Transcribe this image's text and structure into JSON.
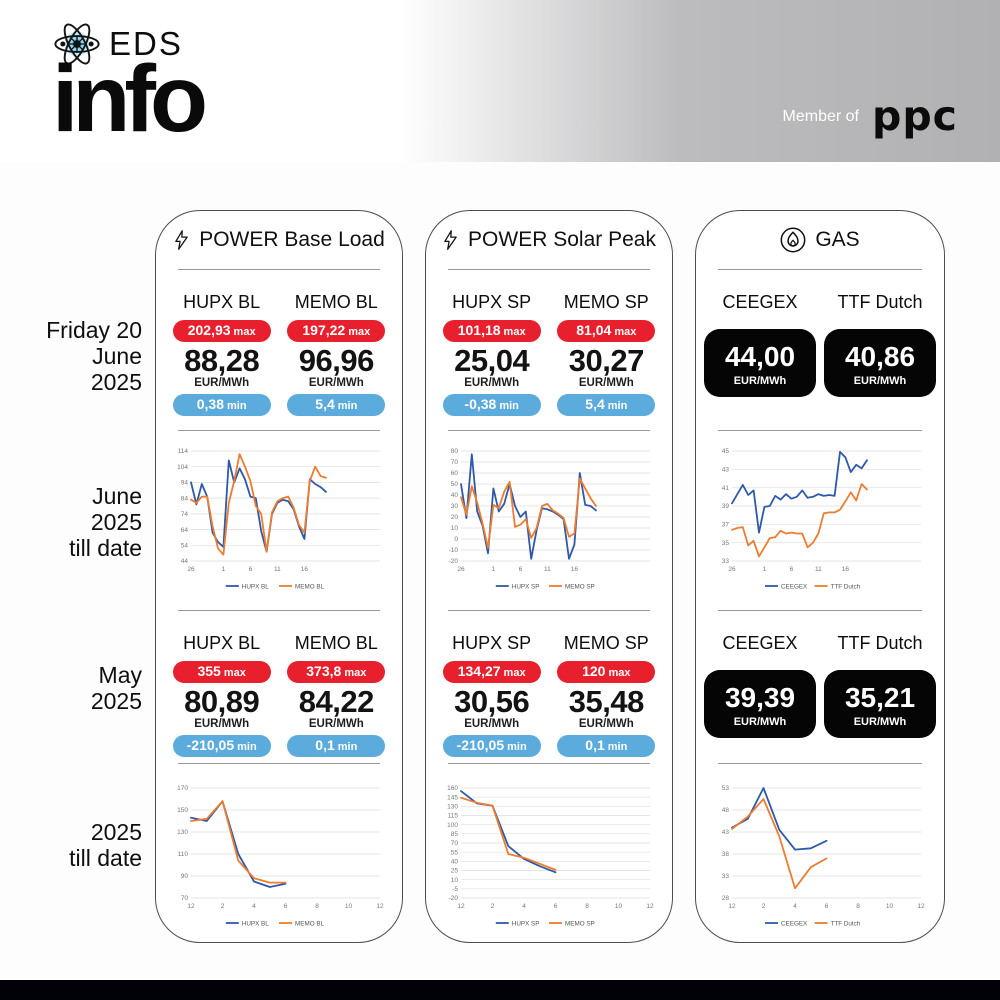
{
  "header": {
    "logo_top": "EDS",
    "logo_main": "info",
    "member_of": "Member of",
    "member_brand": "ppc"
  },
  "row_labels": {
    "day": [
      "Friday 20",
      "June",
      "2025"
    ],
    "june": [
      "June",
      "2025",
      "till date"
    ],
    "may": [
      "May",
      "2025"
    ],
    "ytd": [
      "2025",
      "till date"
    ]
  },
  "labels": {
    "max": "max",
    "min": "min"
  },
  "columns": [
    {
      "title": "POWER Base Load",
      "icon": "lightning",
      "day": [
        {
          "name": "HUPX BL",
          "max": "202,93",
          "value": "88,28",
          "unit": "EUR/MWh",
          "min": "0,38"
        },
        {
          "name": "MEMO BL",
          "max": "197,22",
          "value": "96,96",
          "unit": "EUR/MWh",
          "min": "5,4"
        }
      ],
      "may": [
        {
          "name": "HUPX BL",
          "max": "355",
          "value": "80,89",
          "unit": "EUR/MWh",
          "min": "-210,05"
        },
        {
          "name": "MEMO BL",
          "max": "373,8",
          "value": "84,22",
          "unit": "EUR/MWh",
          "min": "0,1"
        }
      ]
    },
    {
      "title": "POWER Solar Peak",
      "icon": "lightning",
      "day": [
        {
          "name": "HUPX SP",
          "max": "101,18",
          "value": "25,04",
          "unit": "EUR/MWh",
          "min": "-0,38"
        },
        {
          "name": "MEMO SP",
          "max": "81,04",
          "value": "30,27",
          "unit": "EUR/MWh",
          "min": "5,4"
        }
      ],
      "may": [
        {
          "name": "HUPX SP",
          "max": "134,27",
          "value": "30,56",
          "unit": "EUR/MWh",
          "min": "-210,05"
        },
        {
          "name": "MEMO SP",
          "max": "120",
          "value": "35,48",
          "unit": "EUR/MWh",
          "min": "0,1"
        }
      ]
    },
    {
      "title": "GAS",
      "icon": "flame",
      "day": [
        {
          "name": "CEEGEX",
          "value": "44,00",
          "unit": "EUR/MWh"
        },
        {
          "name": "TTF Dutch",
          "value": "40,86",
          "unit": "EUR/MWh"
        }
      ],
      "may": [
        {
          "name": "CEEGEX",
          "value": "39,39",
          "unit": "EUR/MWh"
        },
        {
          "name": "TTF Dutch",
          "value": "35,21",
          "unit": "EUR/MWh"
        }
      ]
    }
  ],
  "colors": {
    "series_blue": "#2e59ab",
    "series_orange": "#ee7c2f",
    "max_red": "#e8202d",
    "min_blue": "#5cabdd",
    "gas_box_black": "#050505",
    "footer_black": "#000207",
    "header_gray": "#b1b1b3",
    "logo_glow_blue": "#7fd0ee"
  },
  "chart_data": [
    {
      "id": "bl-june",
      "type": "line",
      "title": "POWER Base Load - June 2025 till date",
      "x_domain_count": 36,
      "ylim": [
        44,
        114
      ],
      "y_ticks": [
        44,
        54,
        64,
        74,
        84,
        94,
        104,
        114
      ],
      "x_ticks": [
        {
          "pos": 0,
          "label": "26"
        },
        {
          "pos": 6,
          "label": "1"
        },
        {
          "pos": 11,
          "label": "6"
        },
        {
          "pos": 16,
          "label": "11"
        },
        {
          "pos": 21,
          "label": "16"
        }
      ],
      "series": [
        {
          "name": "HUPX BL",
          "color": "series_blue",
          "values": [
            94,
            80,
            93,
            85,
            62,
            56,
            53,
            108,
            94,
            103,
            96,
            85,
            84,
            63,
            50,
            74,
            81,
            83,
            82,
            77,
            66,
            58,
            96,
            93,
            91,
            88
          ]
        },
        {
          "name": "MEMO BL",
          "color": "series_orange",
          "values": [
            83,
            81,
            85,
            85,
            66,
            52,
            48,
            81,
            95,
            112,
            104,
            95,
            79,
            74,
            50,
            75,
            82,
            84,
            85,
            78,
            67,
            62,
            95,
            104,
            98,
            97
          ]
        }
      ]
    },
    {
      "id": "sp-june",
      "type": "line",
      "title": "POWER Solar Peak - June 2025 till date",
      "x_domain_count": 36,
      "ylim": [
        -20,
        80
      ],
      "y_ticks": [
        -20,
        -10,
        0,
        10,
        20,
        30,
        40,
        50,
        60,
        70,
        80
      ],
      "x_ticks": [
        {
          "pos": 0,
          "label": "26"
        },
        {
          "pos": 6,
          "label": "1"
        },
        {
          "pos": 11,
          "label": "6"
        },
        {
          "pos": 16,
          "label": "11"
        },
        {
          "pos": 21,
          "label": "16"
        }
      ],
      "series": [
        {
          "name": "HUPX SP",
          "color": "series_blue",
          "values": [
            50,
            19,
            77,
            25,
            12,
            -13,
            46,
            25,
            32,
            50,
            30,
            20,
            25,
            -18,
            8,
            28,
            27,
            25,
            22,
            18,
            -18,
            -5,
            60,
            31,
            30,
            26
          ]
        },
        {
          "name": "MEMO SP",
          "color": "series_orange",
          "values": [
            38,
            22,
            48,
            33,
            14,
            -8,
            31,
            28,
            43,
            52,
            11,
            13,
            18,
            1,
            10,
            30,
            32,
            26,
            23,
            19,
            2,
            5,
            55,
            46,
            37,
            30
          ]
        }
      ]
    },
    {
      "id": "gas-june",
      "type": "line",
      "title": "GAS - June 2025 till date",
      "x_domain_count": 36,
      "ylim": [
        33,
        45
      ],
      "y_ticks": [
        33,
        35,
        37,
        39,
        41,
        43,
        45
      ],
      "x_ticks": [
        {
          "pos": 0,
          "label": "26"
        },
        {
          "pos": 6,
          "label": "1"
        },
        {
          "pos": 11,
          "label": "6"
        },
        {
          "pos": 16,
          "label": "11"
        },
        {
          "pos": 21,
          "label": "16"
        }
      ],
      "series": [
        {
          "name": "CEEGEX",
          "color": "series_blue",
          "values": [
            39.3,
            40.3,
            41.3,
            40.2,
            40.7,
            36.1,
            38.9,
            39.0,
            40.1,
            39.7,
            40.3,
            39.8,
            40.0,
            40.7,
            39.9,
            40.0,
            40.3,
            40.1,
            40.2,
            40.1,
            44.9,
            44.3,
            42.7,
            43.5,
            43.1,
            44.0
          ]
        },
        {
          "name": "TTF Dutch",
          "color": "series_orange",
          "values": [
            36.4,
            36.6,
            36.7,
            34.7,
            35.2,
            33.5,
            34.5,
            35.5,
            35.6,
            36.3,
            36.0,
            36.1,
            36.0,
            36.0,
            34.5,
            35.0,
            36.0,
            38.2,
            38.3,
            38.3,
            38.6,
            39.5,
            40.5,
            39.6,
            41.4,
            40.8
          ]
        }
      ]
    },
    {
      "id": "bl-ytd",
      "type": "line",
      "title": "POWER Base Load - 2025 till date",
      "x_domain_count": 13,
      "ylim": [
        70,
        170
      ],
      "y_ticks": [
        70,
        90,
        110,
        130,
        150,
        170
      ],
      "x_ticks": [
        {
          "pos": 0,
          "label": "12"
        },
        {
          "pos": 2,
          "label": "2"
        },
        {
          "pos": 4,
          "label": "4"
        },
        {
          "pos": 6,
          "label": "6"
        },
        {
          "pos": 8,
          "label": "8"
        },
        {
          "pos": 10,
          "label": "10"
        },
        {
          "pos": 12,
          "label": "12"
        }
      ],
      "series": [
        {
          "name": "HUPX BL",
          "color": "series_blue",
          "values": [
            143,
            140,
            158,
            110,
            85,
            80,
            83
          ]
        },
        {
          "name": "MEMO BL",
          "color": "series_orange",
          "values": [
            140,
            142,
            158,
            104,
            88,
            84,
            84
          ]
        }
      ]
    },
    {
      "id": "sp-ytd",
      "type": "line",
      "title": "POWER Solar Peak - 2025 till date",
      "x_domain_count": 13,
      "ylim": [
        -20,
        160
      ],
      "y_ticks": [
        -20,
        -5,
        10,
        25,
        40,
        55,
        70,
        85,
        100,
        115,
        130,
        145,
        160
      ],
      "x_ticks": [
        {
          "pos": 0,
          "label": "12"
        },
        {
          "pos": 2,
          "label": "2"
        },
        {
          "pos": 4,
          "label": "4"
        },
        {
          "pos": 6,
          "label": "6"
        },
        {
          "pos": 8,
          "label": "8"
        },
        {
          "pos": 10,
          "label": "10"
        },
        {
          "pos": 12,
          "label": "12"
        }
      ],
      "series": [
        {
          "name": "HUPX SP",
          "color": "series_blue",
          "values": [
            155,
            135,
            131,
            65,
            44,
            32,
            22
          ]
        },
        {
          "name": "MEMO SP",
          "color": "series_orange",
          "values": [
            144,
            136,
            131,
            52,
            46,
            36,
            26
          ]
        }
      ]
    },
    {
      "id": "gas-ytd",
      "type": "line",
      "title": "GAS - 2025 till date",
      "x_domain_count": 13,
      "ylim": [
        28,
        53
      ],
      "y_ticks": [
        28,
        33,
        38,
        43,
        48,
        53
      ],
      "x_ticks": [
        {
          "pos": 0,
          "label": "12"
        },
        {
          "pos": 2,
          "label": "2"
        },
        {
          "pos": 4,
          "label": "4"
        },
        {
          "pos": 6,
          "label": "6"
        },
        {
          "pos": 8,
          "label": "8"
        },
        {
          "pos": 10,
          "label": "10"
        },
        {
          "pos": 12,
          "label": "12"
        }
      ],
      "series": [
        {
          "name": "CEEGEX",
          "color": "series_blue",
          "values": [
            44,
            46,
            53,
            43.5,
            39,
            39.3,
            41
          ]
        },
        {
          "name": "TTF Dutch",
          "color": "series_orange",
          "values": [
            43.7,
            46.5,
            50.5,
            42,
            30.2,
            35,
            37
          ]
        }
      ]
    }
  ]
}
